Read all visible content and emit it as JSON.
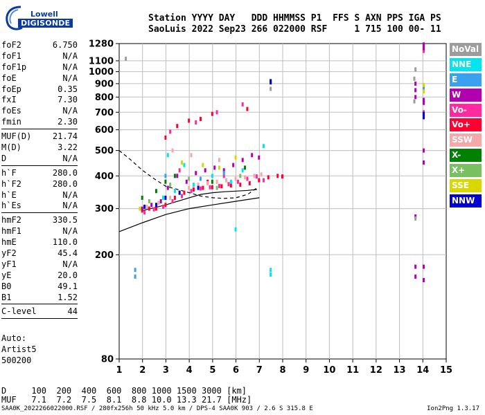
{
  "logo": {
    "top_text": "Lowell",
    "bottom_text": "DIGISONDE"
  },
  "header": {
    "line1": "Station YYYY DAY   DDD HHMMSS P1  FFS S AXN PPS IGA PS",
    "line2": "SaoLuis 2022 Sep23 266 022000 RSF     1 715 100 00- 11"
  },
  "params": [
    {
      "name": "foF2",
      "value": "6.750"
    },
    {
      "name": "foF1",
      "value": "N/A"
    },
    {
      "name": "foF1p",
      "value": "N/A"
    },
    {
      "name": "foE",
      "value": "N/A"
    },
    {
      "name": "foEp",
      "value": "0.35"
    },
    {
      "name": "fxI",
      "value": "7.30"
    },
    {
      "name": "foEs",
      "value": "N/A"
    },
    {
      "name": "fmin",
      "value": "2.30"
    },
    {
      "sep": true
    },
    {
      "name": "MUF(D)",
      "value": "21.74"
    },
    {
      "name": "M(D)",
      "value": "3.22"
    },
    {
      "name": "D",
      "value": "N/A"
    },
    {
      "sep": true
    },
    {
      "name": "h`F",
      "value": "280.0"
    },
    {
      "name": "h`F2",
      "value": "280.0"
    },
    {
      "name": "h`E",
      "value": "N/A"
    },
    {
      "name": "h`Es",
      "value": "N/A"
    },
    {
      "sep": true
    },
    {
      "name": "hmF2",
      "value": "330.5"
    },
    {
      "name": "hmF1",
      "value": "N/A"
    },
    {
      "name": "hmE",
      "value": "110.0"
    },
    {
      "name": "yF2",
      "value": "45.4"
    },
    {
      "name": "yF1",
      "value": "N/A"
    },
    {
      "name": "yE",
      "value": "20.0"
    },
    {
      "name": "B0",
      "value": "49.1"
    },
    {
      "name": "B1",
      "value": "1.52"
    },
    {
      "sep": true
    },
    {
      "name": "C-level",
      "value": "44"
    },
    {
      "sep": true
    }
  ],
  "auto": {
    "line1": "Auto:",
    "line2": "Artist5",
    "line3": "500200"
  },
  "legend": [
    {
      "label": "NoVal",
      "color": "#9c9c9c"
    },
    {
      "label": "NNE",
      "color": "#00e5ee"
    },
    {
      "label": "E",
      "color": "#3aa0f0"
    },
    {
      "label": "W",
      "color": "#b000b0"
    },
    {
      "label": "Vo-",
      "color": "#ff2aa0"
    },
    {
      "label": "Vo+",
      "color": "#ff0030"
    },
    {
      "label": "SSW",
      "color": "#f5a8a8"
    },
    {
      "label": "X-",
      "color": "#008000"
    },
    {
      "label": "X+",
      "color": "#78c060"
    },
    {
      "label": "SSE",
      "color": "#d8d800"
    },
    {
      "label": "NNW",
      "color": "#0000d0"
    }
  ],
  "dmuf": {
    "d_line": "D     100  200  400  600  800 1000 1500 3000 [km]",
    "muf_line": "MUF   7.1  7.2  7.5  8.1  8.8 10.0 13.3 21.7 [MHz]"
  },
  "footer": "SAA0K_2022266022000.RSF / 280fx256h 50 kHz 5.0 km / DPS-4 SAA0K 903 / 2.6 S 315.8 E",
  "version": "Ion2Png 1.3.17",
  "chart_data": {
    "type": "scatter",
    "title": "",
    "xlabel": "",
    "ylabel": "",
    "xlim": [
      1,
      15
    ],
    "ylim": [
      80,
      1280
    ],
    "y_scale": "log",
    "x_ticks": [
      1,
      2,
      3,
      4,
      5,
      6,
      7,
      8,
      9,
      10,
      11,
      12,
      13,
      14,
      15
    ],
    "y_ticks": [
      80,
      200,
      300,
      400,
      500,
      600,
      700,
      800,
      900,
      1000,
      1100,
      1280
    ],
    "grid": true,
    "legend_position": "right",
    "series": [
      {
        "color_key": "Vo+",
        "points": [
          [
            2.0,
            295
          ],
          [
            2.3,
            300
          ],
          [
            2.6,
            305
          ],
          [
            3.0,
            310
          ],
          [
            3.4,
            330
          ],
          [
            3.8,
            345
          ],
          [
            4.2,
            355
          ],
          [
            4.6,
            360
          ],
          [
            5.0,
            362
          ],
          [
            5.4,
            365
          ],
          [
            5.8,
            368
          ],
          [
            6.2,
            370
          ],
          [
            6.6,
            375
          ],
          [
            7.0,
            385
          ],
          [
            7.4,
            395
          ],
          [
            7.8,
            400
          ],
          [
            8.0,
            398
          ],
          [
            3.0,
            560
          ],
          [
            3.5,
            620
          ],
          [
            4.0,
            650
          ],
          [
            4.5,
            660
          ],
          [
            6.5,
            720
          ],
          [
            5.0,
            690
          ],
          [
            2.6,
            300
          ],
          [
            4.8,
            380
          ]
        ]
      },
      {
        "color_key": "Vo-",
        "points": [
          [
            2.1,
            290
          ],
          [
            2.5,
            298
          ],
          [
            2.9,
            305
          ],
          [
            3.3,
            320
          ],
          [
            3.7,
            335
          ],
          [
            4.1,
            350
          ],
          [
            4.5,
            358
          ],
          [
            4.9,
            362
          ],
          [
            5.3,
            366
          ],
          [
            5.7,
            372
          ],
          [
            6.1,
            380
          ],
          [
            6.5,
            390
          ],
          [
            6.9,
            398
          ],
          [
            7.2,
            385
          ],
          [
            3.2,
            590
          ],
          [
            4.3,
            640
          ],
          [
            5.2,
            700
          ],
          [
            6.3,
            750
          ],
          [
            14.05,
            1200
          ],
          [
            14.05,
            700
          ],
          [
            3.6,
            420
          ],
          [
            5.5,
            400
          ]
        ]
      },
      {
        "color_key": "W",
        "points": [
          [
            2.0,
            300
          ],
          [
            2.4,
            310
          ],
          [
            2.8,
            320
          ],
          [
            3.1,
            360
          ],
          [
            3.5,
            400
          ],
          [
            3.9,
            380
          ],
          [
            4.3,
            410
          ],
          [
            4.7,
            420
          ],
          [
            5.1,
            430
          ],
          [
            5.5,
            420
          ],
          [
            5.9,
            440
          ],
          [
            6.3,
            460
          ],
          [
            6.7,
            480
          ],
          [
            7.0,
            470
          ],
          [
            13.7,
            900
          ],
          [
            13.7,
            850
          ],
          [
            13.7,
            800
          ],
          [
            14.05,
            1230
          ],
          [
            14.05,
            1270
          ],
          [
            14.05,
            500
          ],
          [
            14.05,
            450
          ],
          [
            14.05,
            180
          ],
          [
            14.05,
            160
          ],
          [
            13.7,
            180
          ],
          [
            13.7,
            165
          ],
          [
            14.05,
            780
          ],
          [
            14.05,
            760
          ],
          [
            13.7,
            280
          ]
        ]
      },
      {
        "color_key": "SSW",
        "points": [
          [
            2.2,
            305
          ],
          [
            2.7,
            315
          ],
          [
            3.2,
            330
          ],
          [
            3.6,
            345
          ],
          [
            4.0,
            360
          ],
          [
            4.4,
            370
          ],
          [
            4.8,
            375
          ],
          [
            5.2,
            380
          ],
          [
            5.6,
            385
          ],
          [
            6.0,
            390
          ],
          [
            6.4,
            395
          ],
          [
            6.8,
            400
          ],
          [
            7.1,
            405
          ],
          [
            3.3,
            500
          ],
          [
            4.1,
            480
          ],
          [
            5.3,
            460
          ]
        ]
      },
      {
        "color_key": "NNE",
        "points": [
          [
            2.9,
            330
          ],
          [
            3.1,
            480
          ],
          [
            3.4,
            350
          ],
          [
            3.8,
            440
          ],
          [
            4.2,
            370
          ],
          [
            5.0,
            400
          ],
          [
            5.8,
            380
          ],
          [
            6.3,
            420
          ],
          [
            7.2,
            520
          ],
          [
            6.0,
            250
          ],
          [
            7.5,
            175
          ],
          [
            7.5,
            168
          ],
          [
            14.05,
            850
          ]
        ]
      },
      {
        "color_key": "E",
        "points": [
          [
            1.7,
            175
          ],
          [
            1.7,
            165
          ],
          [
            3.0,
            400
          ],
          [
            4.5,
            390
          ],
          [
            5.5,
            410
          ],
          [
            14.05,
            860
          ],
          [
            14.05,
            880
          ]
        ]
      },
      {
        "color_key": "X-",
        "points": [
          [
            2.0,
            330
          ],
          [
            2.6,
            350
          ],
          [
            3.0,
            380
          ],
          [
            3.4,
            400
          ],
          [
            5.0,
            380
          ],
          [
            6.4,
            430
          ]
        ]
      },
      {
        "color_key": "X+",
        "points": [
          [
            2.3,
            320
          ],
          [
            3.2,
            370
          ],
          [
            4.0,
            390
          ],
          [
            5.2,
            360
          ],
          [
            6.2,
            400
          ]
        ]
      },
      {
        "color_key": "SSE",
        "points": [
          [
            1.9,
            300
          ],
          [
            3.7,
            450
          ],
          [
            4.6,
            440
          ],
          [
            5.3,
            430
          ],
          [
            6.0,
            470
          ],
          [
            14.05,
            890
          ],
          [
            14.05,
            840
          ]
        ]
      },
      {
        "color_key": "NNW",
        "points": [
          [
            2.1,
            305
          ],
          [
            2.6,
            310
          ],
          [
            3.0,
            330
          ],
          [
            3.6,
            345
          ],
          [
            4.4,
            360
          ],
          [
            7.5,
            910
          ],
          [
            7.5,
            920
          ],
          [
            14.05,
            670
          ],
          [
            14.05,
            690
          ]
        ]
      },
      {
        "color_key": "NoVal",
        "points": [
          [
            7.5,
            860
          ],
          [
            1.3,
            1120
          ],
          [
            13.7,
            1020
          ],
          [
            13.65,
            940
          ],
          [
            13.65,
            770
          ],
          [
            13.7,
            275
          ]
        ]
      }
    ],
    "curves": [
      {
        "style": "solid",
        "x": [
          1,
          2,
          3,
          4,
          5,
          6,
          7
        ],
        "y": [
          245,
          265,
          285,
          300,
          310,
          320,
          330
        ]
      },
      {
        "style": "dashed",
        "x": [
          1,
          1.5,
          2,
          2.5,
          3,
          3.5,
          4,
          4.5,
          5,
          5.5,
          6,
          6.5,
          6.9
        ],
        "y": [
          500,
          460,
          420,
          390,
          365,
          355,
          345,
          335,
          330,
          328,
          330,
          340,
          360
        ]
      },
      {
        "style": "solid",
        "x": [
          2,
          3,
          4,
          4.5,
          5,
          5.5,
          6,
          6.5,
          6.9
        ],
        "y": [
          295,
          310,
          330,
          340,
          345,
          348,
          350,
          352,
          355
        ]
      }
    ]
  }
}
